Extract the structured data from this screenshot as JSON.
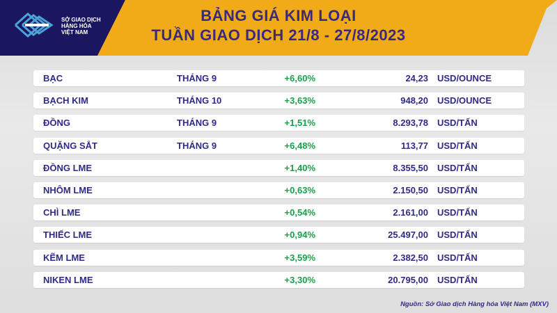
{
  "colors": {
    "banner": "#f2ab18",
    "banner_dark": "#1a1760",
    "title_text": "#3a2a7a",
    "row_text": "#2f2a86",
    "change_text": "#19a04b",
    "logo_blue": "#4ba3d8"
  },
  "logo": {
    "line1": "SỞ GIAO DỊCH",
    "line2": "HÀNG HÓA",
    "line3": "VIỆT NAM"
  },
  "title": {
    "line1": "BẢNG GIÁ KIM LOẠI",
    "line2": "TUẦN GIAO DỊCH 21/8 - 27/8/2023"
  },
  "rows": [
    {
      "name": "BẠC",
      "month": "THÁNG 9",
      "change": "+6,60%",
      "price": "24,23",
      "unit": "USD/OUNCE"
    },
    {
      "name": "BẠCH KIM",
      "month": "THÁNG 10",
      "change": "+3,63%",
      "price": "948,20",
      "unit": "USD/OUNCE"
    },
    {
      "name": "ĐỒNG",
      "month": "THÁNG 9",
      "change": "+1,51%",
      "price": "8.293,78",
      "unit": "USD/TẤN"
    },
    {
      "name": "QUẶNG SẮT",
      "month": "THÁNG 9",
      "change": "+6,48%",
      "price": "113,77",
      "unit": "USD/TẤN"
    },
    {
      "name": "ĐỒNG LME",
      "month": "",
      "change": "+1,40%",
      "price": "8.355,50",
      "unit": "USD/TẤN"
    },
    {
      "name": "NHÔM LME",
      "month": "",
      "change": "+0,63%",
      "price": "2.150,50",
      "unit": "USD/TẤN"
    },
    {
      "name": "CHÌ LME",
      "month": "",
      "change": "+0,54%",
      "price": "2.161,00",
      "unit": "USD/TẤN"
    },
    {
      "name": "THIẾC LME",
      "month": "",
      "change": "+0,94%",
      "price": "25.497,00",
      "unit": "USD/TẤN"
    },
    {
      "name": "KẼM LME",
      "month": "",
      "change": "+3,59%",
      "price": "2.382,50",
      "unit": "USD/TẤN"
    },
    {
      "name": "NIKEN LME",
      "month": "",
      "change": "+3,30%",
      "price": "20.795,00",
      "unit": "USD/TẤN"
    }
  ],
  "source": "Nguồn: Sở Giao dịch Hàng hóa Việt Nam (MXV)"
}
